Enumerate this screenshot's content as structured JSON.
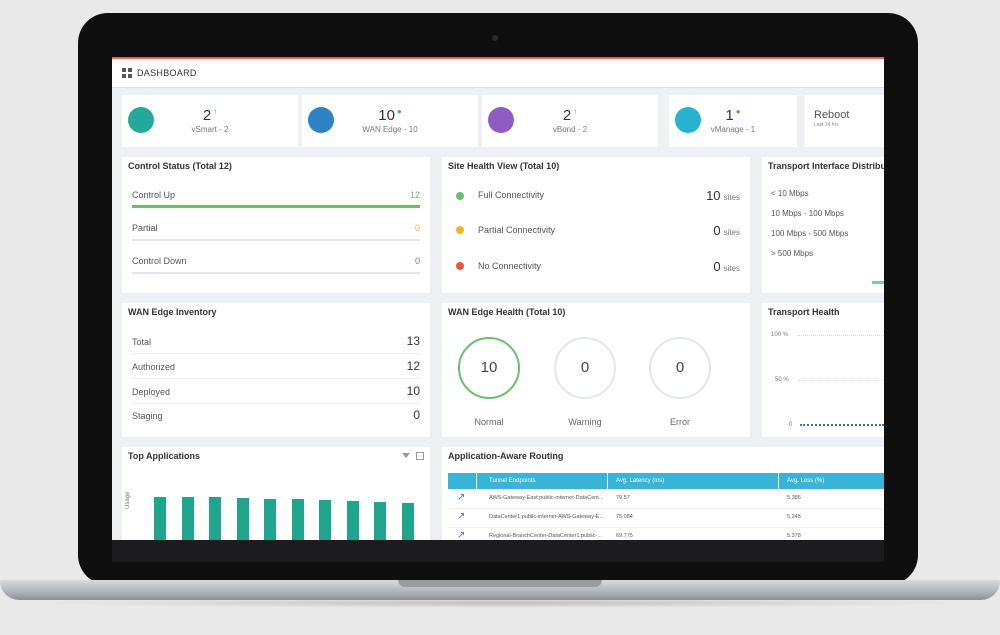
{
  "header": {
    "title": "DASHBOARD"
  },
  "stats": [
    {
      "count": "2",
      "label": "vSmart - 2",
      "icon": "vsmart-icon",
      "color": "#23a99a",
      "arrow": "↑"
    },
    {
      "count": "10",
      "label": "WAN Edge - 10",
      "icon": "wan-edge-icon",
      "color": "#2f82c4",
      "arrow": "●"
    },
    {
      "count": "2",
      "label": "vBond - 2",
      "icon": "vbond-icon",
      "color": "#8f5cc4",
      "arrow": "↑"
    },
    {
      "count": "1",
      "label": "vManage - 1",
      "icon": "vmanage-icon",
      "color": "#25b3d0",
      "arrow": "●"
    }
  ],
  "reboot": {
    "title": "Reboot",
    "sub": "Last 24 hrs"
  },
  "control_status": {
    "title": "Control Status (Total 12)",
    "rows": [
      {
        "label": "Control Up",
        "value": "12",
        "color": "#6abf6a",
        "fill": 1.0
      },
      {
        "label": "Partial",
        "value": "0",
        "color": "#f0b429",
        "fill": 0
      },
      {
        "label": "Control Down",
        "value": "0",
        "color": "#e0573c",
        "fill": 0
      }
    ]
  },
  "site_health": {
    "title": "Site Health View (Total 10)",
    "unit": "sites",
    "rows": [
      {
        "label": "Full Connectivity",
        "value": "10",
        "color": "#6abf6a"
      },
      {
        "label": "Partial Connectivity",
        "value": "0",
        "color": "#f0b429"
      },
      {
        "label": "No Connectivity",
        "value": "0",
        "color": "#e0573c"
      }
    ]
  },
  "transport_dist": {
    "title": "Transport Interface Distribution",
    "rows": [
      "< 10 Mbps",
      "10 Mbps - 100 Mbps",
      "100 Mbps - 500 Mbps",
      "> 500 Mbps"
    ]
  },
  "inventory": {
    "title": "WAN Edge Inventory",
    "rows": [
      {
        "label": "Total",
        "value": "13"
      },
      {
        "label": "Authorized",
        "value": "12"
      },
      {
        "label": "Deployed",
        "value": "10"
      },
      {
        "label": "Staging",
        "value": "0"
      }
    ]
  },
  "edge_health": {
    "title": "WAN Edge Health (Total 10)",
    "items": [
      {
        "value": "10",
        "label": "Normal"
      },
      {
        "value": "0",
        "label": "Warning"
      },
      {
        "value": "0",
        "label": "Error"
      }
    ]
  },
  "transport_health": {
    "title": "Transport Health",
    "ticks": [
      "100 %",
      "50 %",
      "0"
    ]
  },
  "top_apps": {
    "title": "Top Applications",
    "ylabel": "Usage",
    "bar_color": "#1fa58b",
    "bar_levels": [
      0.97,
      0.97,
      0.96,
      0.95,
      0.93,
      0.92,
      0.91,
      0.89,
      0.87,
      0.85
    ]
  },
  "aar": {
    "title": "Application-Aware Routing",
    "columns": [
      "Tunnel Endpoints",
      "Avg. Latency (ms)",
      "Avg. Loss (%)"
    ],
    "rows": [
      [
        "AWS-Gateway-East:public-internet-DataCent...",
        "79.57",
        "5.386"
      ],
      [
        "DataCenter1:public-internet-AWS-Gateway-E...",
        "75.084",
        "5.245"
      ],
      [
        "Regional-BranchCenter-DataCenter1:public-...",
        "69.775",
        "5.378"
      ]
    ]
  }
}
